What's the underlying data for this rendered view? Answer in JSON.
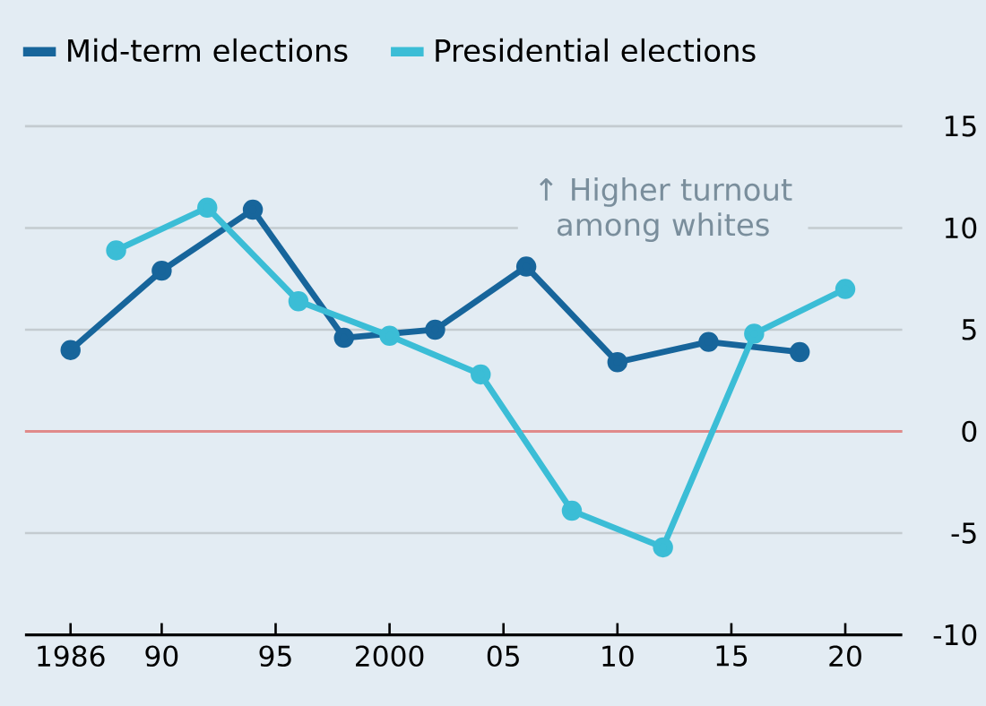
{
  "chart_data": {
    "type": "line",
    "series": [
      {
        "name": "Mid-term elections",
        "color": "#17659b",
        "x": [
          1986,
          1990,
          1994,
          1998,
          2002,
          2006,
          2010,
          2014,
          2018
        ],
        "values": [
          4.0,
          7.9,
          10.9,
          4.6,
          5.0,
          8.1,
          3.4,
          4.4,
          3.9
        ]
      },
      {
        "name": "Presidential elections",
        "color": "#3bbdd6",
        "x": [
          1988,
          1992,
          1996,
          2000,
          2004,
          2008,
          2012,
          2016,
          2020
        ],
        "values": [
          8.9,
          11.0,
          6.4,
          4.7,
          2.8,
          -3.9,
          -5.7,
          4.8,
          7.0
        ]
      }
    ],
    "xlim": [
      1984,
      2022.5
    ],
    "xticks": [
      1986,
      {
        "value": 1990,
        "label": "90"
      },
      {
        "value": 1995,
        "label": "95"
      },
      2000,
      {
        "value": 2005,
        "label": "05"
      },
      {
        "value": 2010,
        "label": "10"
      },
      {
        "value": 2015,
        "label": "15"
      },
      {
        "value": 2020,
        "label": "20"
      }
    ],
    "ylim": [
      -10,
      15
    ],
    "yticks": [
      -10,
      -5,
      0,
      5,
      10,
      15
    ],
    "grid": "y",
    "legend": "top left",
    "marker": "circle",
    "line_style": "solid",
    "ref_lines": [
      {
        "axis": "y",
        "value": 0,
        "color": "#e08a8a"
      }
    ],
    "annotations": [
      "↑ Higher turnout among whites"
    ]
  }
}
